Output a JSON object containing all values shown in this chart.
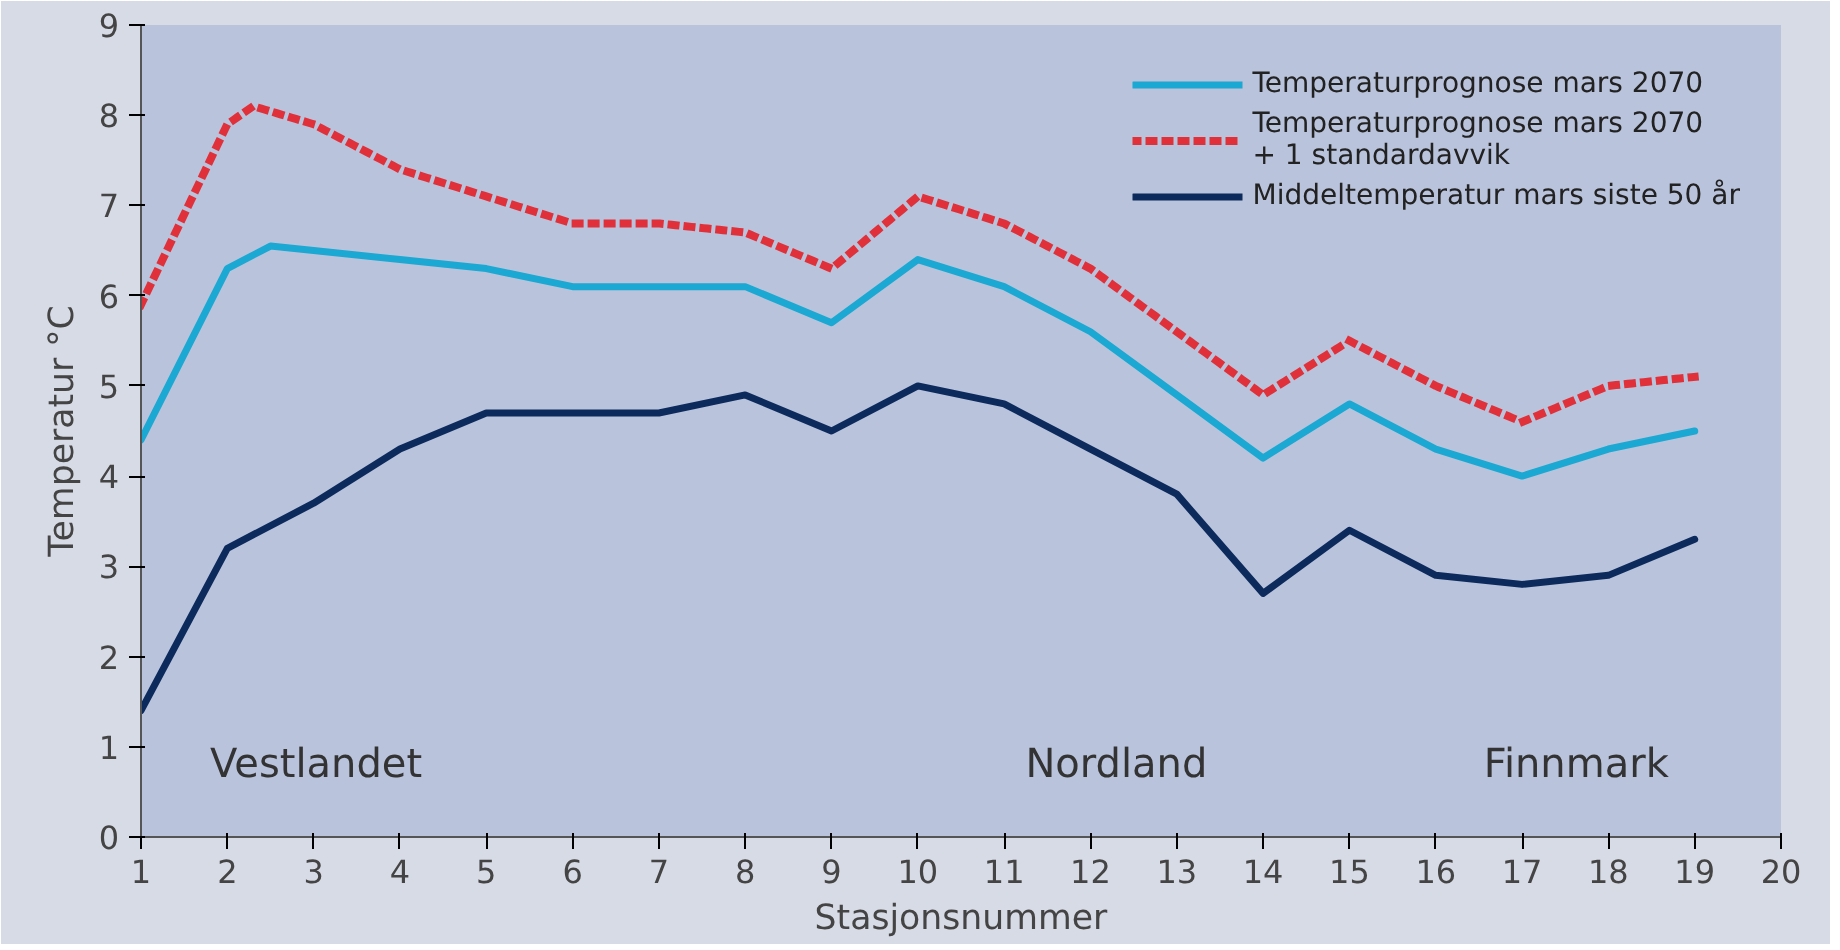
{
  "chart_data": {
    "type": "line",
    "xlabel": "Stasjonsnummer",
    "ylabel": "Temperatur °C",
    "xlim": [
      1,
      20
    ],
    "ylim": [
      0,
      9
    ],
    "xticks": [
      1,
      2,
      3,
      4,
      5,
      6,
      7,
      8,
      9,
      10,
      11,
      12,
      13,
      14,
      15,
      16,
      17,
      18,
      19,
      20
    ],
    "yticks": [
      0,
      1,
      2,
      3,
      4,
      5,
      6,
      7,
      8,
      9
    ],
    "grid": false,
    "legend": "top right",
    "marker": "none",
    "annotations": [
      "Vestlandet",
      "Nordland",
      "Finnmark"
    ],
    "series": [
      {
        "name": "Temperaturprognose mars 2070",
        "color": "#1ba8d2",
        "line_style": "solid",
        "x": [
          1,
          2,
          2.5,
          3,
          4,
          5,
          6,
          7,
          8,
          9,
          10,
          11,
          12,
          13,
          14,
          15,
          16,
          17,
          18,
          19
        ],
        "values": [
          4.4,
          6.3,
          6.55,
          6.5,
          6.4,
          6.3,
          6.1,
          6.1,
          6.1,
          5.7,
          6.4,
          6.1,
          5.6,
          4.9,
          4.2,
          4.8,
          4.3,
          4.0,
          4.3,
          4.5
        ]
      },
      {
        "name": "Temperaturprognose mars 2070\n+ 1 standardavvik",
        "color": "#e0303a",
        "line_style": "dotted",
        "x": [
          1,
          2,
          2.3,
          3,
          4,
          5,
          6,
          7,
          8,
          9,
          10,
          11,
          12,
          13,
          14,
          15,
          16,
          17,
          18,
          19
        ],
        "values": [
          5.9,
          7.9,
          8.1,
          7.9,
          7.4,
          7.1,
          6.8,
          6.8,
          6.7,
          6.3,
          7.1,
          6.8,
          6.3,
          5.6,
          4.9,
          5.5,
          5.0,
          4.6,
          5.0,
          5.1
        ]
      },
      {
        "name": "Middeltemperatur mars siste 50 år",
        "color": "#0d2a5c",
        "line_style": "solid",
        "x": [
          1,
          2,
          3,
          4,
          5,
          6,
          7,
          8,
          9,
          10,
          11,
          12,
          13,
          14,
          15,
          16,
          17,
          18,
          19
        ],
        "values": [
          1.4,
          3.2,
          3.7,
          4.3,
          4.7,
          4.7,
          4.7,
          4.9,
          4.5,
          5.0,
          4.8,
          4.3,
          3.8,
          2.7,
          3.4,
          2.9,
          2.8,
          2.9,
          3.3
        ]
      }
    ]
  }
}
